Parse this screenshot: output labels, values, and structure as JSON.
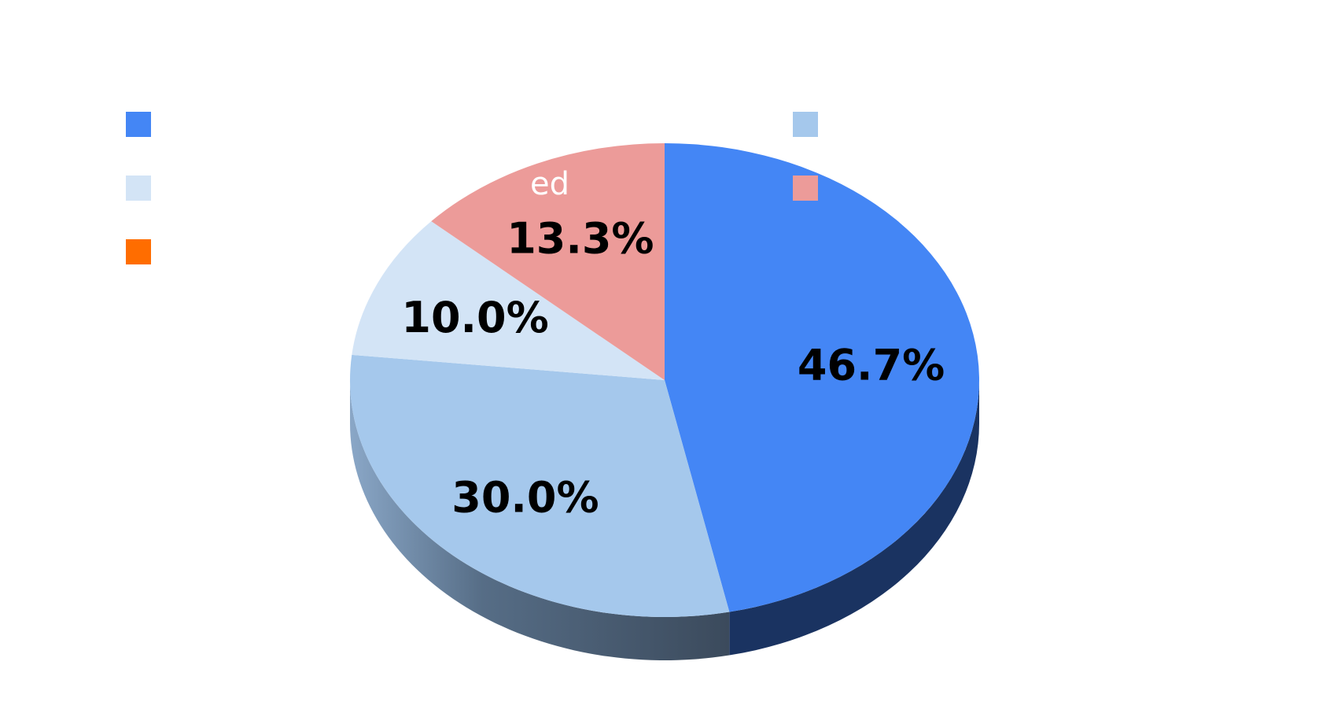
{
  "chart_data": {
    "type": "pie",
    "three_d": true,
    "start_angle_deg": 90,
    "direction": "clockwise",
    "slices": [
      {
        "value": 46.7,
        "label": "46.7%",
        "color": "#4486f5",
        "side_color": "#1a3361"
      },
      {
        "value": 30.0,
        "label": "30.0%",
        "color": "#a5c8ec",
        "side_color": "#4d6a87"
      },
      {
        "value": 10.0,
        "label": "10.0%",
        "color": "#d3e4f6",
        "side_color": "#8aa2bb"
      },
      {
        "value": 13.3,
        "label": "13.3%",
        "color": "#ec9b99",
        "side_color": "#a86d6b"
      }
    ],
    "legend": {
      "placement": "top",
      "entries": [
        {
          "name": "",
          "color": "#4486f5"
        },
        {
          "name": "",
          "color": "#a5c8ec"
        },
        {
          "name": "",
          "color": "#d3e4f6"
        },
        {
          "name": "",
          "color": "#ec9b99"
        },
        {
          "name": "",
          "color": "#ff6d00"
        }
      ]
    },
    "visible_label_fragment": "ed"
  }
}
